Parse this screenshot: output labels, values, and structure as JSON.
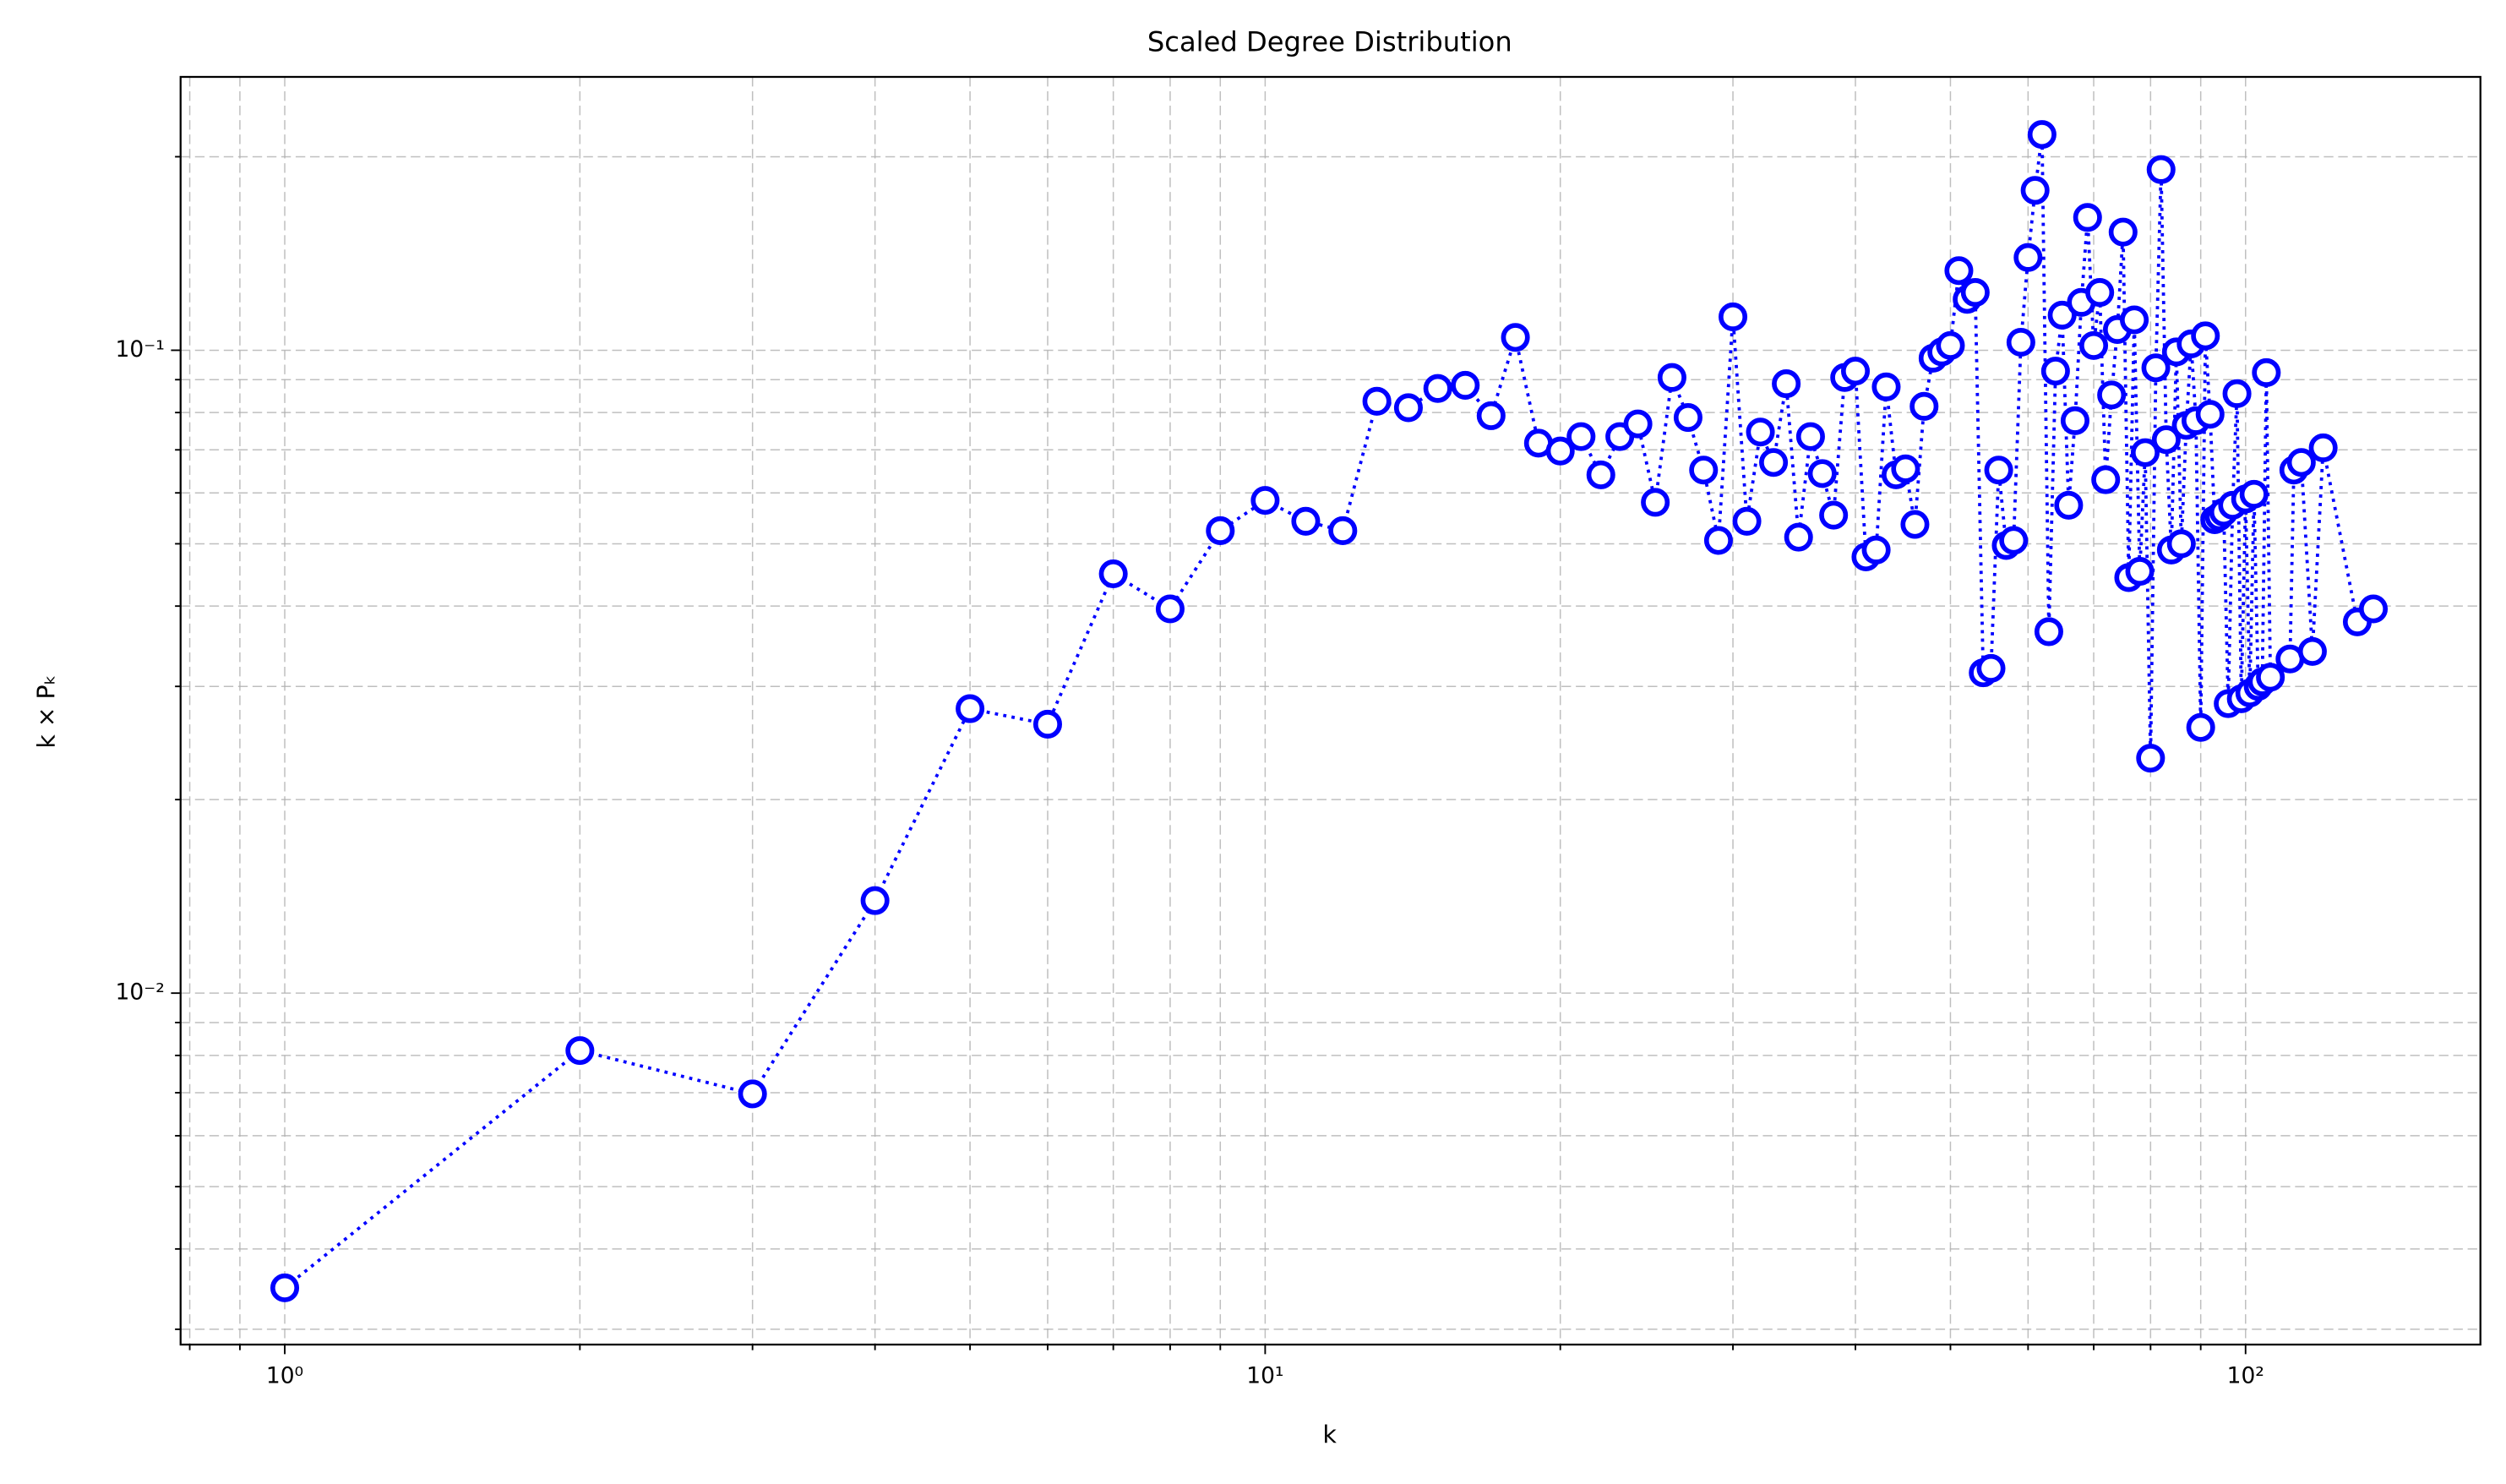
{
  "chart_data": {
    "type": "line",
    "title": "Scaled Degree Distribution",
    "x_label": "k",
    "y_label": "k × Pₖ",
    "xscale": "log",
    "yscale": "log",
    "grid": true,
    "xlim": [
      0.783,
      173.6
    ],
    "ylim": [
      0.00284,
      0.2662
    ],
    "xticks": [
      {
        "value": 1,
        "label": "10⁰"
      },
      {
        "value": 10,
        "label": "10¹"
      },
      {
        "value": 100,
        "label": "10²"
      }
    ],
    "yticks": [
      {
        "value": 0.01,
        "label": "10⁻²"
      },
      {
        "value": 0.1,
        "label": "10⁻¹"
      }
    ],
    "xminorticks": [
      0.8,
      0.9,
      2,
      3,
      4,
      5,
      6,
      7,
      8,
      9,
      20,
      30,
      40,
      50,
      60,
      70,
      80,
      90
    ],
    "yminorticks": [
      0.003,
      0.004,
      0.005,
      0.006,
      0.007,
      0.008,
      0.009,
      0.02,
      0.03,
      0.04,
      0.05,
      0.06,
      0.07,
      0.08,
      0.09,
      0.2
    ],
    "series": [
      {
        "color": "#0000ff",
        "marker_fill": "#ffffff",
        "line_style": "dotted",
        "x": [
          1,
          2,
          3,
          4,
          5,
          6,
          7,
          8,
          9,
          10,
          11,
          12,
          13,
          14,
          15,
          16,
          17,
          18,
          19,
          20,
          21,
          22,
          23,
          24,
          25,
          26,
          27,
          28,
          29,
          30,
          31,
          32,
          33,
          34,
          35,
          36,
          37,
          38,
          39,
          40,
          41,
          42,
          43,
          44,
          45,
          46,
          47,
          48,
          49,
          50,
          51,
          52,
          53,
          54,
          55,
          56,
          57,
          58,
          59,
          60,
          61,
          62,
          63,
          64,
          65,
          66,
          67,
          68,
          69,
          70,
          71,
          72,
          73,
          74,
          75,
          76,
          77,
          78,
          79,
          80,
          81,
          82,
          83,
          84,
          85,
          86,
          87,
          88,
          89,
          90,
          91,
          92,
          93,
          94,
          95,
          96,
          97,
          98,
          99,
          100,
          101,
          102,
          103,
          104,
          105,
          106,
          111,
          112,
          114,
          117,
          120,
          130,
          135
        ],
        "values": [
          0.00348,
          0.00814,
          0.00697,
          0.01393,
          0.0277,
          0.0262,
          0.0449,
          0.0396,
          0.0524,
          0.0584,
          0.0542,
          0.0524,
          0.0833,
          0.0814,
          0.0872,
          0.0882,
          0.0791,
          0.1047,
          0.0717,
          0.0697,
          0.0734,
          0.064,
          0.0734,
          0.0768,
          0.058,
          0.0907,
          0.0786,
          0.0651,
          0.0506,
          0.1127,
          0.0542,
          0.0746,
          0.0669,
          0.0887,
          0.0512,
          0.0734,
          0.0643,
          0.0554,
          0.0907,
          0.0928,
          0.0477,
          0.0489,
          0.0877,
          0.064,
          0.0654,
          0.0536,
          0.0818,
          0.0972,
          0.0994,
          0.1017,
          0.133,
          0.12,
          0.123,
          0.0315,
          0.032,
          0.0651,
          0.0497,
          0.0506,
          0.1029,
          0.1394,
          0.1773,
          0.2166,
          0.0365,
          0.0928,
          0.1134,
          0.0574,
          0.0777,
          0.1187,
          0.1609,
          0.1017,
          0.123,
          0.0629,
          0.0852,
          0.1077,
          0.1527,
          0.0443,
          0.1115,
          0.0453,
          0.0693,
          0.0232,
          0.0939,
          0.191,
          0.0726,
          0.0489,
          0.0994,
          0.05,
          0.0764,
          0.1023,
          0.0777,
          0.0259,
          0.1053,
          0.0795,
          0.0545,
          0.0551,
          0.056,
          0.0282,
          0.0574,
          0.0856,
          0.0287,
          0.0587,
          0.0293,
          0.0597,
          0.03,
          0.0305,
          0.0923,
          0.031,
          0.0331,
          0.0651,
          0.0669,
          0.034,
          0.0705,
          0.0378,
          0.0396
        ]
      }
    ]
  }
}
